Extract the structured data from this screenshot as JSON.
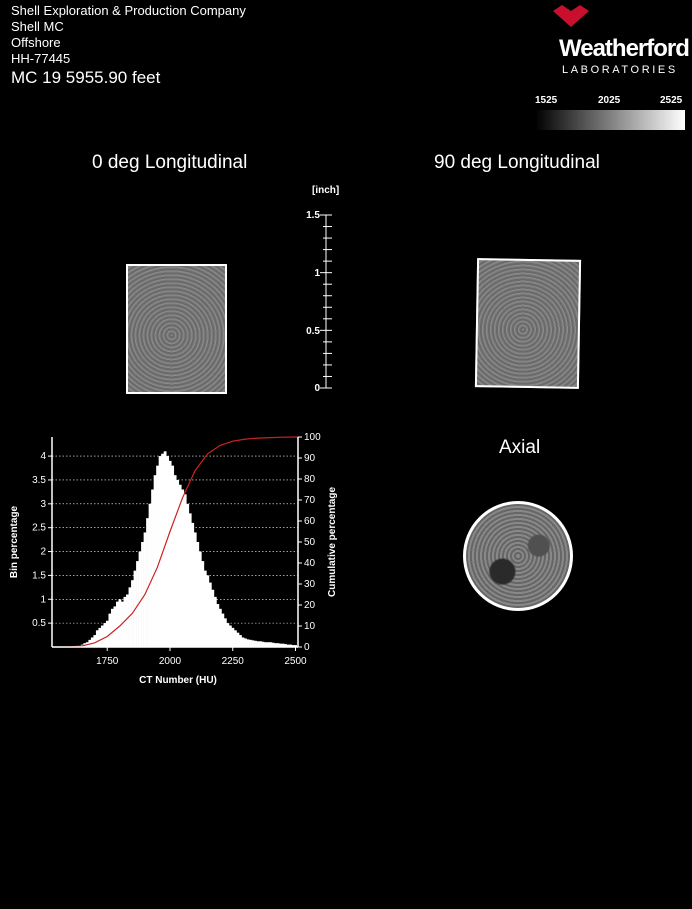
{
  "header": {
    "company": "Shell Exploration & Production Company",
    "field": "Shell MC",
    "location": "Offshore",
    "sample_id": "HH-77445",
    "depth_line": "MC 19  5955.90  feet"
  },
  "logo": {
    "name": "Weatherford",
    "sub": "LABORATORIES",
    "mark": "logo-mark-icon"
  },
  "ct_scale": {
    "labels": [
      "1525",
      "2025",
      "2525"
    ]
  },
  "views": {
    "longitudinal_0": "0 deg Longitudinal",
    "longitudinal_90": "90 deg Longitudinal",
    "axial": "Axial"
  },
  "scale_bar": {
    "unit": "[inch]",
    "ticks": [
      "0",
      "0.5",
      "1",
      "1.5"
    ]
  },
  "chart_data": {
    "type": "bar",
    "xlabel": "CT Number (HU)",
    "ylabel": "Bin percentage",
    "y2label": "Cumulative percentage",
    "xlim": [
      1530,
      2510
    ],
    "ylim": [
      0,
      4.4
    ],
    "y2lim": [
      0,
      100
    ],
    "xticks": [
      "1750",
      "2000",
      "2250",
      "2500"
    ],
    "yticks": [
      "0.5",
      "1",
      "1.5",
      "2",
      "2.5",
      "3",
      "3.5",
      "4"
    ],
    "y2ticks": [
      "0",
      "10",
      "20",
      "30",
      "40",
      "50",
      "60",
      "70",
      "80",
      "90",
      "100"
    ],
    "grid": true,
    "bin_width": 10,
    "bins_x": [
      1650,
      1660,
      1670,
      1680,
      1690,
      1700,
      1710,
      1720,
      1730,
      1740,
      1750,
      1760,
      1770,
      1780,
      1790,
      1800,
      1810,
      1820,
      1830,
      1840,
      1850,
      1860,
      1870,
      1880,
      1890,
      1900,
      1910,
      1920,
      1930,
      1940,
      1950,
      1960,
      1970,
      1980,
      1990,
      2000,
      2010,
      2020,
      2030,
      2040,
      2050,
      2060,
      2070,
      2080,
      2090,
      2100,
      2110,
      2120,
      2130,
      2140,
      2150,
      2160,
      2170,
      2180,
      2190,
      2200,
      2210,
      2220,
      2230,
      2240,
      2250,
      2260,
      2270,
      2280,
      2290,
      2300,
      2310,
      2320,
      2330,
      2340,
      2350,
      2360,
      2370,
      2380,
      2390,
      2400,
      2410,
      2420,
      2430,
      2440,
      2450,
      2460,
      2470,
      2480,
      2490,
      2500
    ],
    "bins_y": [
      0.05,
      0.08,
      0.1,
      0.15,
      0.2,
      0.25,
      0.35,
      0.4,
      0.45,
      0.5,
      0.55,
      0.7,
      0.8,
      0.85,
      0.95,
      1.0,
      0.95,
      1.05,
      1.1,
      1.25,
      1.4,
      1.6,
      1.8,
      2.0,
      2.2,
      2.4,
      2.7,
      3.0,
      3.3,
      3.6,
      3.8,
      4.0,
      4.05,
      4.1,
      4.0,
      3.9,
      3.8,
      3.6,
      3.5,
      3.4,
      3.3,
      3.2,
      3.0,
      2.8,
      2.6,
      2.4,
      2.2,
      2.0,
      1.8,
      1.6,
      1.5,
      1.35,
      1.2,
      1.05,
      0.9,
      0.8,
      0.7,
      0.6,
      0.5,
      0.45,
      0.4,
      0.35,
      0.3,
      0.25,
      0.2,
      0.18,
      0.16,
      0.15,
      0.14,
      0.13,
      0.12,
      0.12,
      0.11,
      0.1,
      0.1,
      0.1,
      0.09,
      0.08,
      0.08,
      0.07,
      0.07,
      0.06,
      0.05,
      0.05,
      0.04,
      0.04
    ],
    "cumulative_x": [
      1530,
      1600,
      1650,
      1700,
      1750,
      1800,
      1850,
      1900,
      1950,
      2000,
      2050,
      2100,
      2150,
      2200,
      2250,
      2300,
      2350,
      2400,
      2450,
      2510
    ],
    "cumulative_y": [
      0,
      0,
      0.5,
      2,
      5,
      10,
      16,
      25,
      38,
      55,
      71,
      84,
      92,
      96,
      98,
      99,
      99.5,
      99.7,
      99.9,
      100
    ]
  },
  "colors": {
    "cumulative_line": "#cc2222",
    "bars": "#ffffff",
    "logo_mark": "#c8102e"
  }
}
